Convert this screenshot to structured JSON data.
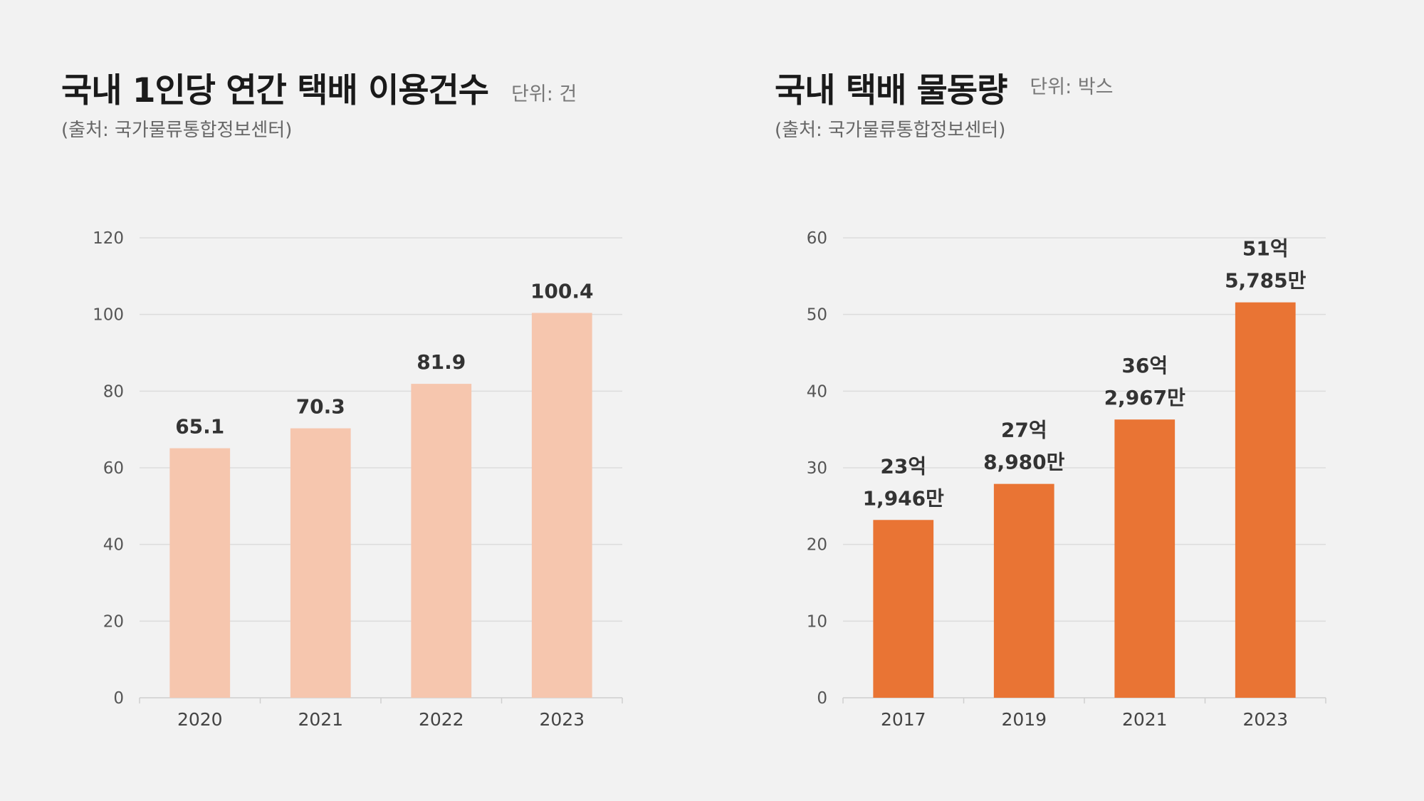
{
  "chart_data": [
    {
      "type": "bar",
      "title": "국내 1인당 연간 택배 이용건수",
      "unit": "단위: 건",
      "source": "(출처: 국가물류통합정보센터)",
      "categories": [
        "2020",
        "2021",
        "2022",
        "2023"
      ],
      "values": [
        65.1,
        70.3,
        81.9,
        100.4
      ],
      "value_labels": [
        [
          "65.1"
        ],
        [
          "70.3"
        ],
        [
          "81.9"
        ],
        [
          "100.4"
        ]
      ],
      "ylim": [
        0,
        120
      ],
      "yticks": [
        0,
        20,
        40,
        60,
        80,
        100,
        120
      ],
      "grid": true,
      "color": "#f6c6ae"
    },
    {
      "type": "bar",
      "title": "국내 택배 물동량",
      "unit": "단위: 박스",
      "source": "(출처: 국가물류통합정보센터)",
      "categories": [
        "2017",
        "2019",
        "2021",
        "2023"
      ],
      "values": [
        23.1946,
        27.898,
        36.2967,
        51.5785
      ],
      "value_labels": [
        [
          "23억",
          "1,946만"
        ],
        [
          "27억",
          "8,980만"
        ],
        [
          "36억",
          "2,967만"
        ],
        [
          "51억",
          "5,785만"
        ]
      ],
      "ylim": [
        0,
        60
      ],
      "yticks": [
        0,
        10,
        20,
        30,
        40,
        50,
        60
      ],
      "grid": true,
      "color": "#e97434"
    }
  ]
}
